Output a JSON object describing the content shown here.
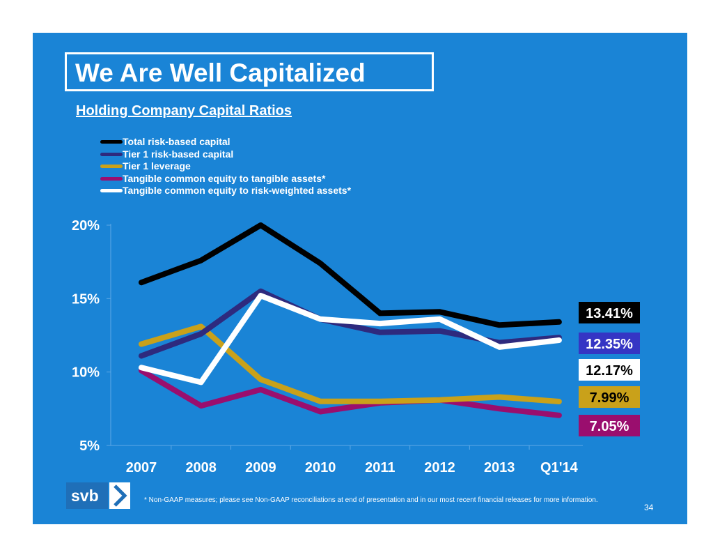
{
  "title": "We Are Well Capitalized",
  "subtitle": "Holding Company Capital Ratios",
  "footnote": "* Non-GAAP measures; please see Non-GAAP reconciliations at end of presentation and in our most recent financial releases  for more information.",
  "page_number": "34",
  "logo_text": "svb",
  "colors": {
    "background": "#1a84d6",
    "total_risk_based": "#000000",
    "tier1_risk_based": "#2e2a7e",
    "tier1_leverage": "#c9a11a",
    "tce_tangible_assets": "#9a0e6e",
    "tce_risk_weighted": "#ffffff"
  },
  "chart_data": {
    "type": "line",
    "categories": [
      "2007",
      "2008",
      "2009",
      "2010",
      "2011",
      "2012",
      "2013",
      "Q1'14"
    ],
    "yticks": [
      "5%",
      "10%",
      "15%",
      "20%"
    ],
    "ylim": [
      5,
      20
    ],
    "grid": false,
    "legend_position": "top-left",
    "series": [
      {
        "name": "Total risk-based capital",
        "color": "#000000",
        "values": [
          16.1,
          17.6,
          20.0,
          17.4,
          14.0,
          14.1,
          13.2,
          13.41
        ],
        "end_label": "13.41%",
        "label_bg": "#000000",
        "label_fg": "#ffffff"
      },
      {
        "name": "Tier 1 risk-based capital",
        "color": "#2e2a7e",
        "values": [
          11.1,
          12.6,
          15.5,
          13.6,
          12.7,
          12.8,
          12.0,
          12.35
        ],
        "end_label": "12.35%",
        "label_bg": "#3535c4",
        "label_fg": "#ffffff"
      },
      {
        "name": "Tier 1 leverage",
        "color": "#c9a11a",
        "values": [
          11.9,
          13.1,
          9.5,
          8.0,
          8.0,
          8.1,
          8.3,
          7.99
        ],
        "end_label": "7.99%",
        "label_bg": "#c9a11a",
        "label_fg": "#000000"
      },
      {
        "name": "Tangible common equity to tangible assets*",
        "color": "#9a0e6e",
        "values": [
          10.1,
          7.7,
          8.8,
          7.3,
          7.9,
          8.1,
          7.5,
          7.05
        ],
        "end_label": "7.05%",
        "label_bg": "#9a0e6e",
        "label_fg": "#ffffff"
      },
      {
        "name": "Tangible common equity to risk-weighted assets*",
        "color": "#ffffff",
        "values": [
          10.3,
          9.3,
          15.2,
          13.6,
          13.3,
          13.6,
          11.7,
          12.17
        ],
        "end_label": "12.17%",
        "label_bg": "#ffffff",
        "label_fg": "#000000"
      }
    ]
  }
}
